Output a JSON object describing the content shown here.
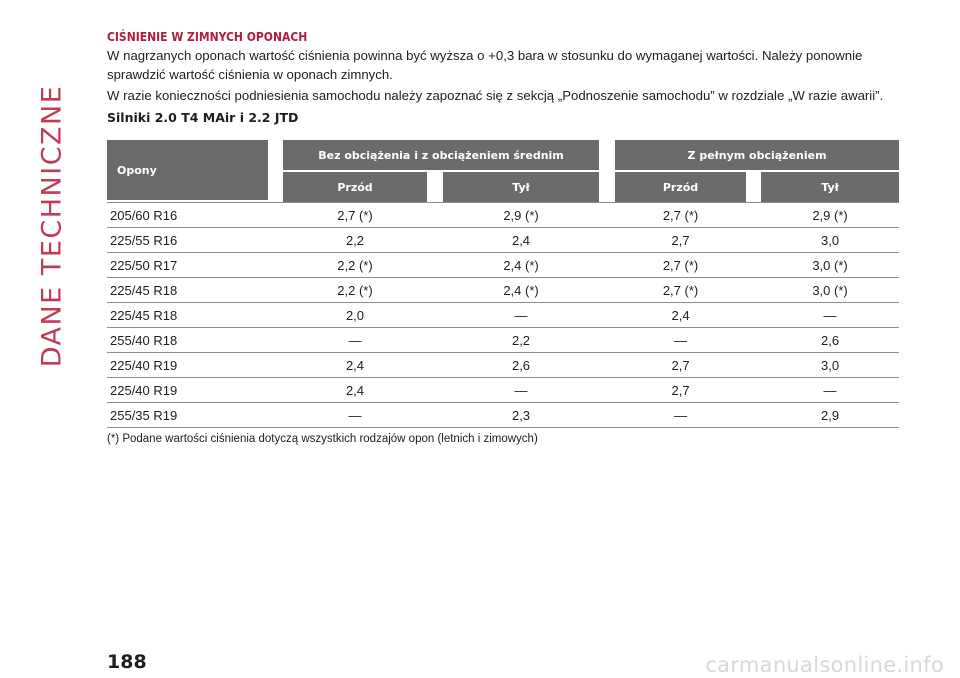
{
  "side_title": "DANE TECHNICZNE",
  "section_heading": "CIŚNIENIE W ZIMNYCH OPONACH",
  "paragraphs": [
    "W nagrzanych oponach wartość ciśnienia powinna być wyższa o +0,3 bara w stosunku do wymaganej wartości. Należy ponownie sprawdzić wartość ciśnienia w oponach zimnych.",
    "W razie konieczności podniesienia samochodu należy zapoznać się z sekcją „Podnoszenie samochodu” w rozdziale „W razie awarii”."
  ],
  "sub_heading": "Silniki 2.0 T4 MAir i 2.2 JTD",
  "table": {
    "col_tyres": "Opony",
    "group1": "Bez obciążenia i z obciążeniem średnim",
    "group2": "Z pełnym obciążeniem",
    "front": "Przód",
    "rear": "Tył",
    "rows": [
      [
        "205/60 R16",
        "2,7 (*)",
        "2,9 (*)",
        "2,7 (*)",
        "2,9 (*)"
      ],
      [
        "225/55 R16",
        "2,2",
        "2,4",
        "2,7",
        "3,0"
      ],
      [
        "225/50 R17",
        "2,2 (*)",
        "2,4 (*)",
        "2,7 (*)",
        "3,0 (*)"
      ],
      [
        "225/45 R18",
        "2,2 (*)",
        "2,4 (*)",
        "2,7 (*)",
        "3,0 (*)"
      ],
      [
        "225/45 R18",
        "2,0",
        "—",
        "2,4",
        "—"
      ],
      [
        "255/40 R18",
        "—",
        "2,2",
        "—",
        "2,6"
      ],
      [
        "225/40 R19",
        "2,4",
        "2,6",
        "2,7",
        "3,0"
      ],
      [
        "225/40 R19",
        "2,4",
        "—",
        "2,7",
        "—"
      ],
      [
        "255/35 R19",
        "—",
        "2,3",
        "—",
        "2,9"
      ]
    ]
  },
  "footnote": "(*) Podane wartości ciśnienia dotyczą wszystkich rodzajów opon (letnich i zimowych)",
  "page_number": "188",
  "watermark": "carmanualsonline.info"
}
